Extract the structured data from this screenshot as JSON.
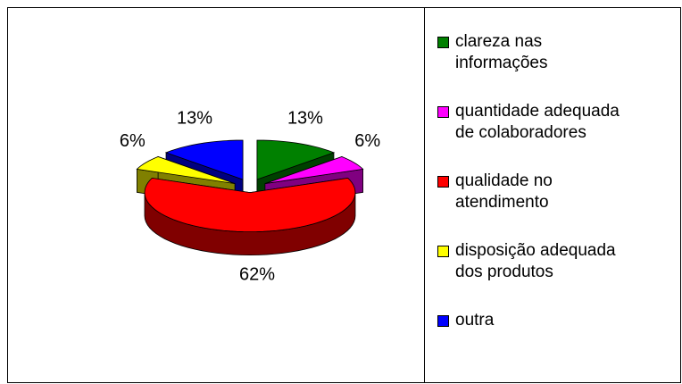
{
  "chart_data": {
    "type": "pie3d",
    "categories": [
      "clareza nas\ninformações",
      "quantidade adequada\nde colaboradores",
      "qualidade no\natendimento",
      "disposição adequada\ndos produtos",
      "outra"
    ],
    "values": [
      13,
      6,
      62,
      6,
      13
    ],
    "value_labels": [
      "13%",
      "6%",
      "62%",
      "6%",
      "13%"
    ],
    "colors": [
      "#008000",
      "#ff00ff",
      "#ff0000",
      "#ffff00",
      "#0000ff"
    ],
    "legend": "right"
  }
}
